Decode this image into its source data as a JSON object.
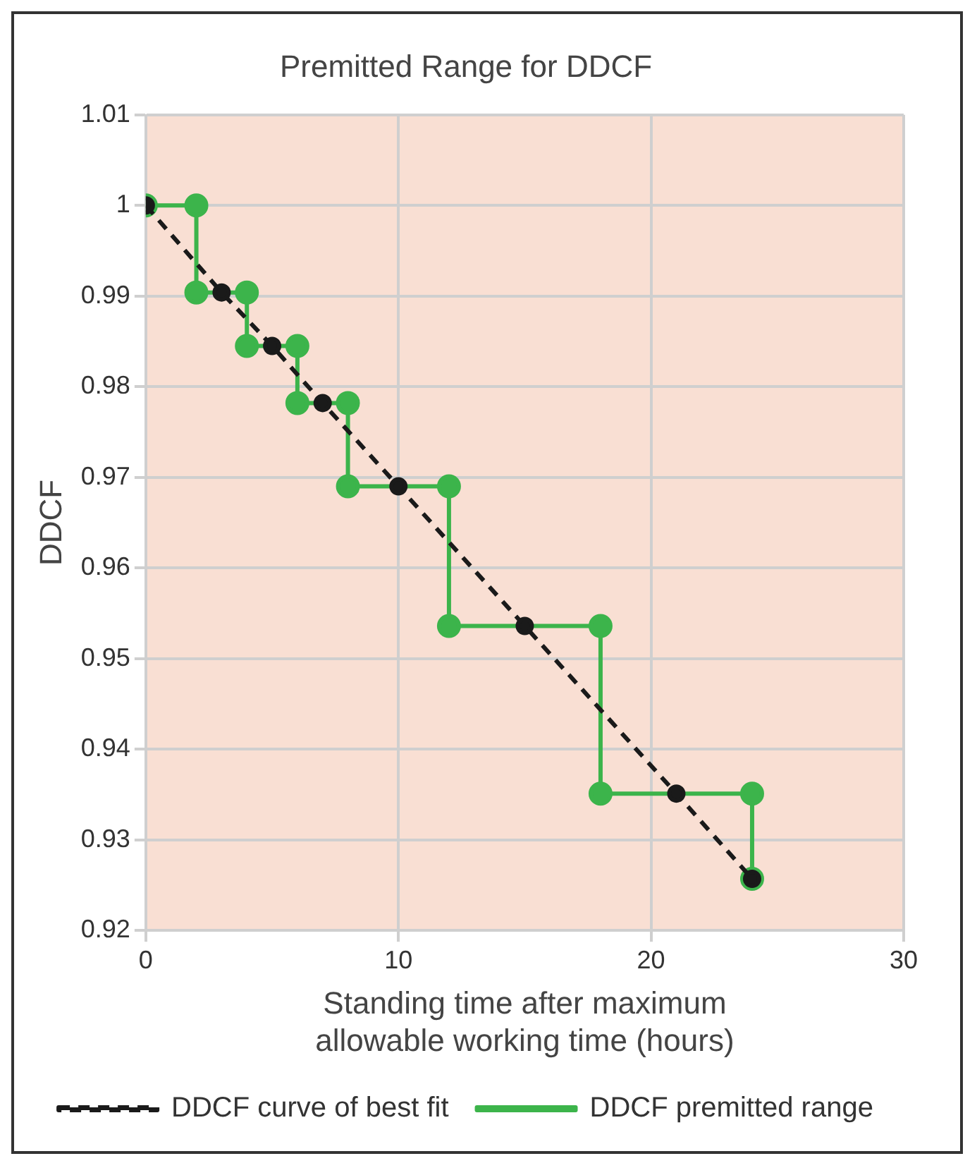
{
  "chart_data": {
    "type": "line",
    "title": "Premitted Range for DDCF",
    "xlabel": "Standing time after maximum allowable working time (hours)",
    "ylabel": "DDCF",
    "series": [
      {
        "name": "DDCF premitted range",
        "color": "#3cb44b",
        "x": [
          0,
          2,
          2,
          4,
          4,
          6,
          6,
          8,
          8,
          12,
          12,
          18,
          18,
          24,
          24
        ],
        "values": [
          1,
          1,
          0.9904,
          0.9904,
          0.9845,
          0.9845,
          0.9782,
          0.9782,
          0.969,
          0.969,
          0.9536,
          0.9536,
          0.9351,
          0.9351,
          0.9257
        ],
        "marker": "circle",
        "line_style": "solid"
      },
      {
        "name": "DDCF curve of best fit",
        "color": "#1a1a1a",
        "x": [
          0,
          3,
          5,
          7,
          10,
          15,
          21,
          24
        ],
        "values": [
          1,
          0.9904,
          0.9845,
          0.9782,
          0.969,
          0.9536,
          0.9351,
          0.9257
        ],
        "marker": "circle",
        "line_style": "dashed"
      }
    ],
    "xlim": [
      0,
      30
    ],
    "xticks": [
      0,
      10,
      20,
      30
    ],
    "ylim": [
      0.92,
      1.01
    ],
    "yticks": [
      0.92,
      0.93,
      0.94,
      0.95,
      0.96,
      0.97,
      0.98,
      0.99,
      1,
      1.01
    ],
    "grid": true,
    "legend": "bottom"
  }
}
